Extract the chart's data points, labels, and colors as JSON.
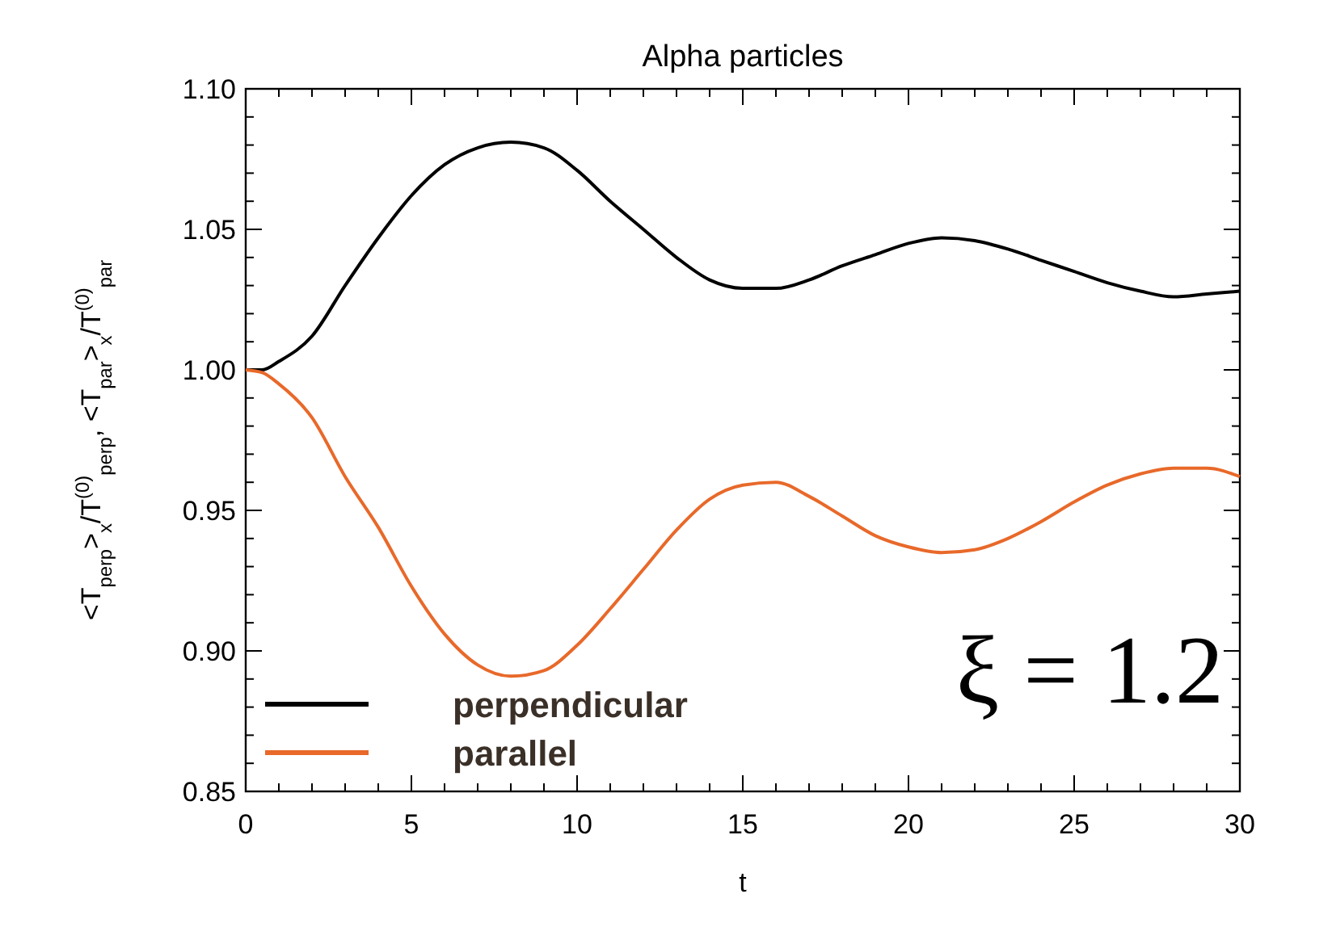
{
  "chart_data": {
    "type": "line",
    "title": "Alpha particles",
    "xlabel": "t",
    "ylabel": "<T$_{perp}$>$_{x}$/T$^{(0)}$$_{perp}$, <T$_{par}$>$_{x}$/T$^{(0)}$$_{par}$",
    "x": [
      0,
      0.5,
      1,
      2,
      3,
      4,
      5,
      6,
      7,
      8,
      9,
      10,
      11,
      12,
      13,
      14,
      15,
      16,
      17,
      18,
      19,
      20,
      21,
      22,
      23,
      24,
      25,
      26,
      27,
      28,
      29,
      30
    ],
    "series": [
      {
        "name": "perpendicular",
        "color": "#000000",
        "values": [
          1.0,
          1.0,
          1.003,
          1.012,
          1.03,
          1.047,
          1.062,
          1.073,
          1.079,
          1.081,
          1.079,
          1.071,
          1.06,
          1.05,
          1.04,
          1.032,
          1.029,
          1.029,
          1.032,
          1.037,
          1.041,
          1.045,
          1.047,
          1.046,
          1.043,
          1.039,
          1.035,
          1.031,
          1.028,
          1.026,
          1.027,
          1.028
        ]
      },
      {
        "name": "parallel",
        "color": "#e8692a",
        "values": [
          1.0,
          0.999,
          0.995,
          0.983,
          0.962,
          0.944,
          0.923,
          0.906,
          0.895,
          0.891,
          0.893,
          0.902,
          0.915,
          0.929,
          0.943,
          0.954,
          0.959,
          0.96,
          0.955,
          0.948,
          0.941,
          0.937,
          0.935,
          0.936,
          0.94,
          0.946,
          0.953,
          0.959,
          0.963,
          0.965,
          0.965,
          0.962
        ]
      }
    ],
    "xlim": [
      0,
      30
    ],
    "xticks": [
      0,
      5,
      10,
      15,
      20,
      25,
      30
    ],
    "ylim": [
      0.85,
      1.1
    ],
    "yticks": [
      {
        "value": 0.85,
        "label": "0.85"
      },
      {
        "value": 0.9,
        "label": "0.90"
      },
      {
        "value": 0.95,
        "label": "0.95"
      },
      {
        "value": 1.0,
        "label": "1.00"
      },
      {
        "value": 1.05,
        "label": "1.05"
      },
      {
        "value": 1.1,
        "label": "1.10"
      }
    ],
    "annotations": [
      "ξ = 1.2"
    ],
    "legend": "bottom left",
    "grid": false,
    "line_style": "solid"
  }
}
